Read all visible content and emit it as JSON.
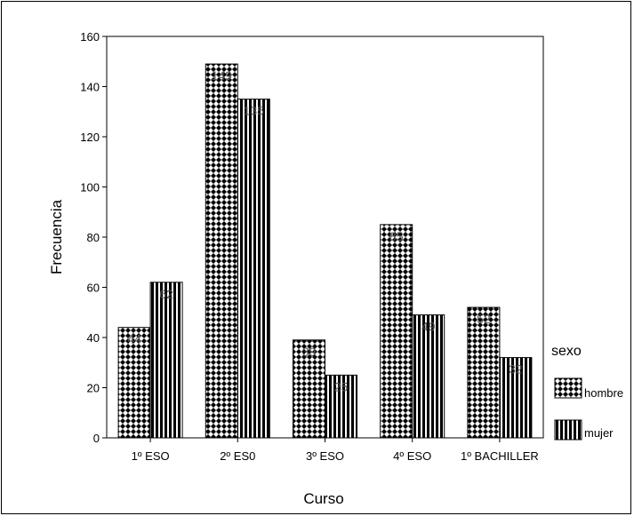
{
  "chart_data": {
    "type": "bar",
    "categories": [
      "1º ESO",
      "2º ES0",
      "3º ESO",
      "4º ESO",
      "1º BACHILLER"
    ],
    "series": [
      {
        "name": "hombre",
        "values": [
          44,
          149,
          39,
          85,
          52
        ],
        "pattern": "crosshatch"
      },
      {
        "name": "mujer",
        "values": [
          62,
          135,
          25,
          49,
          32
        ],
        "pattern": "vertical-stripes"
      }
    ],
    "xlabel": "Curso",
    "ylabel": "Frecuencia",
    "ylim": [
      0,
      160
    ],
    "yticks": [
      0,
      20,
      40,
      60,
      80,
      100,
      120,
      140,
      160
    ],
    "legend_title": "sexo",
    "legend_position": "right",
    "grid": false,
    "data_labels": true,
    "colors": {
      "bar_fill": "#000000",
      "pattern_gap": "#ffffff",
      "label": "#555555"
    }
  }
}
